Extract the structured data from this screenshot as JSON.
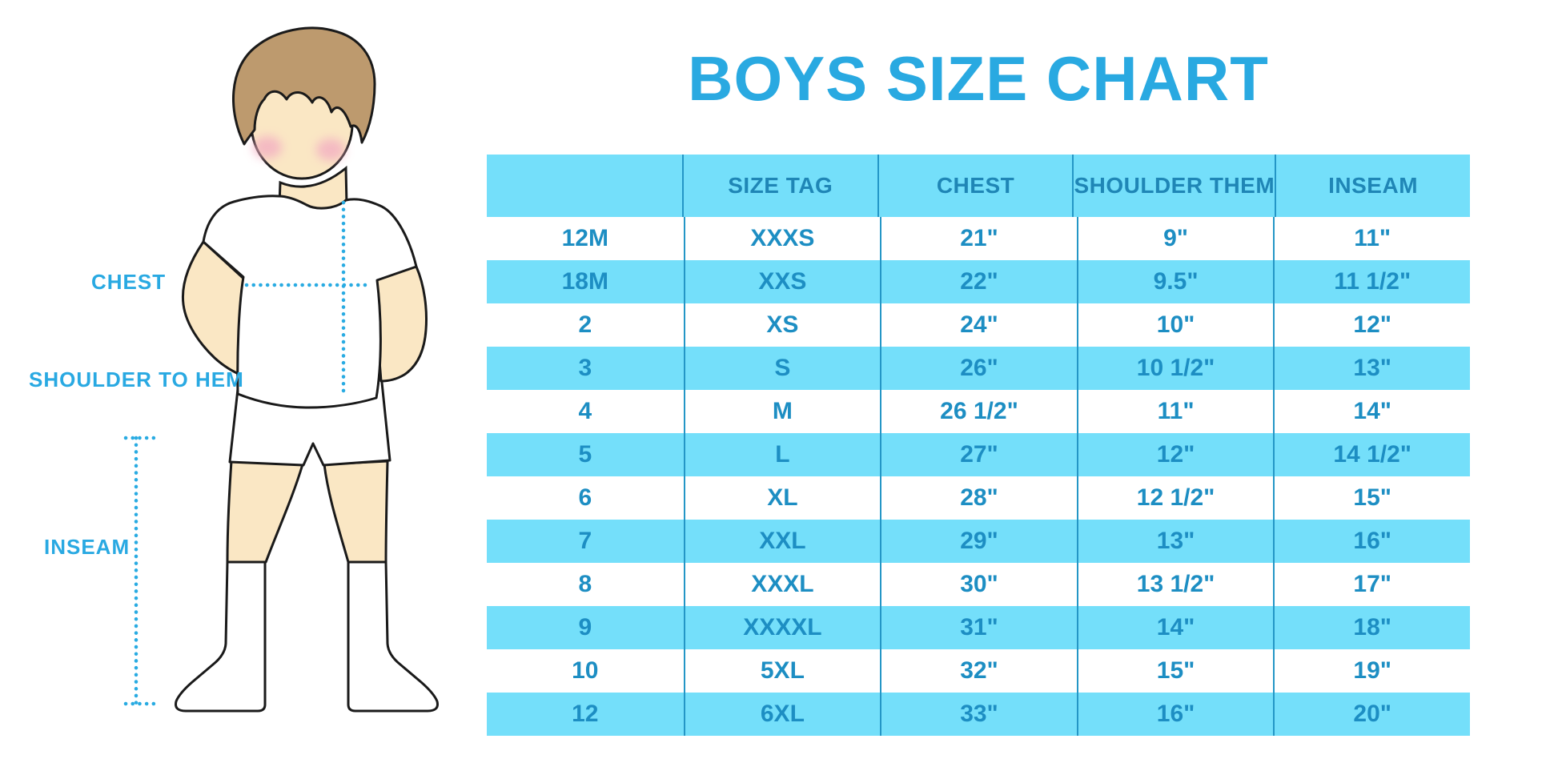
{
  "title": "BOYS SIZE CHART",
  "measurement_labels": {
    "chest": "CHEST",
    "shoulder_to_hem": "SHOULDER TO HEM",
    "inseam": "INSEAM"
  },
  "chart_data": {
    "type": "table",
    "title": "BOYS SIZE CHART",
    "columns": [
      "",
      "SIZE TAG",
      "CHEST",
      "SHOULDER THEM",
      "INSEAM"
    ],
    "rows": [
      [
        "12M",
        "XXXS",
        "21\"",
        "9\"",
        "11\""
      ],
      [
        "18M",
        "XXS",
        "22\"",
        "9.5\"",
        "11 1/2\""
      ],
      [
        "2",
        "XS",
        "24\"",
        "10\"",
        "12\""
      ],
      [
        "3",
        "S",
        "26\"",
        "10 1/2\"",
        "13\""
      ],
      [
        "4",
        "M",
        "26 1/2\"",
        "11\"",
        "14\""
      ],
      [
        "5",
        "L",
        "27\"",
        "12\"",
        "14 1/2\""
      ],
      [
        "6",
        "XL",
        "28\"",
        "12 1/2\"",
        "15\""
      ],
      [
        "7",
        "XXL",
        "29\"",
        "13\"",
        "16\""
      ],
      [
        "8",
        "XXXL",
        "30\"",
        "13 1/2\"",
        "17\""
      ],
      [
        "9",
        "XXXXL",
        "31\"",
        "14\"",
        "18\""
      ],
      [
        "10",
        "5XL",
        "32\"",
        "15\"",
        "19\""
      ],
      [
        "12",
        "6XL",
        "33\"",
        "16\"",
        "20\""
      ]
    ],
    "stripe_pattern": "rows alternate white and light cyan, first data row white",
    "legend_position": "none",
    "grid": "vertical column dividers only"
  },
  "colors": {
    "title_blue": "#29a9e1",
    "label_blue": "#29a9e2",
    "dotted_blue": "#29abe2",
    "band": "#74dffa",
    "header_text": "#1f86b6",
    "row_text": "#1d8ec3",
    "divider": "#2496c6",
    "skin": "#fae7c4",
    "hair": "#bd9a6e",
    "blush": "#f3afc2",
    "outline": "#1a1a1a"
  }
}
